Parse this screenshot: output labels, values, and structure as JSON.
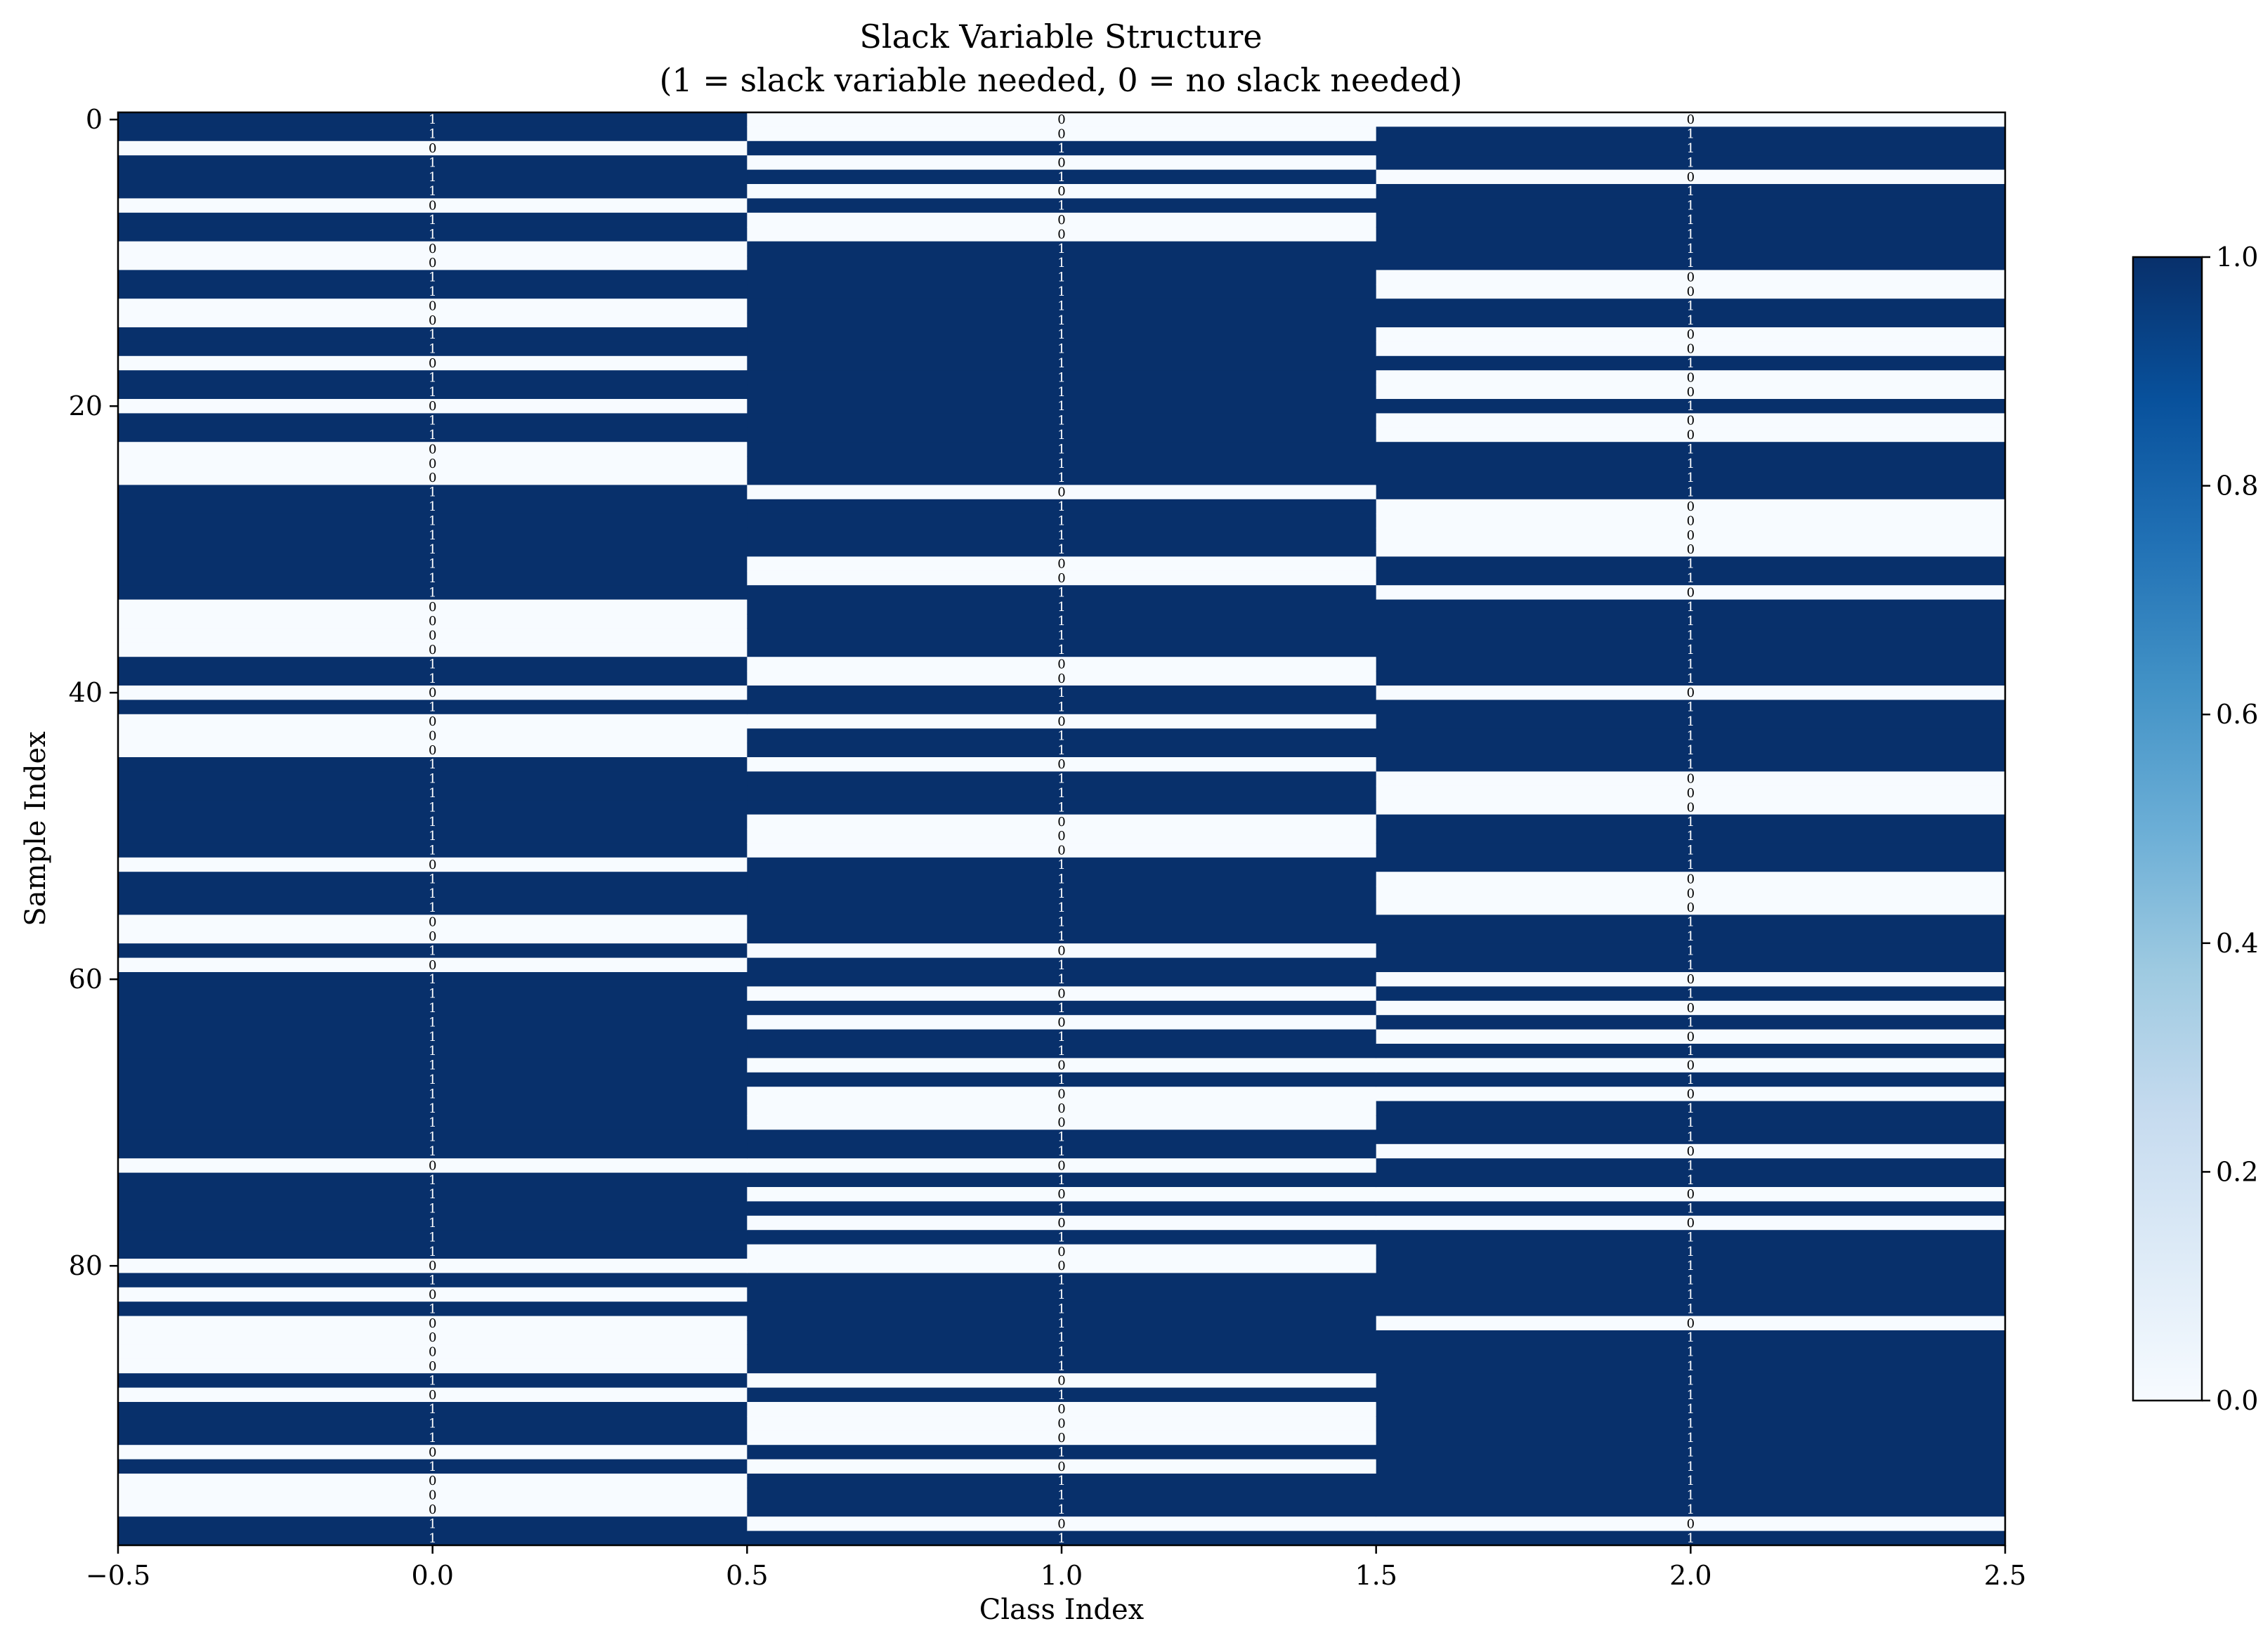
{
  "chart_data": {
    "type": "heatmap",
    "title": "Slack Variable Structure",
    "subtitle": "(1 = slack variable needed, 0 = no slack needed)",
    "xlabel": "Class Index",
    "ylabel": "Sample Index",
    "x_ticks": [
      "−0.5",
      "0.0",
      "0.5",
      "1.0",
      "1.5",
      "2.0",
      "2.5"
    ],
    "x_tick_values": [
      -0.5,
      0.0,
      0.5,
      1.0,
      1.5,
      2.0,
      2.5
    ],
    "y_ticks": [
      "0",
      "20",
      "40",
      "60",
      "80"
    ],
    "y_tick_values": [
      0,
      20,
      40,
      60,
      80
    ],
    "xlim": [
      -0.5,
      2.5
    ],
    "ylim": [
      99.5,
      -0.5
    ],
    "colormap": "Blues",
    "color_low": "#f7fbff",
    "color_high": "#08306b",
    "colorbar": {
      "ticks": [
        "0.0",
        "0.2",
        "0.4",
        "0.6",
        "0.8",
        "1.0"
      ],
      "tick_values": [
        0,
        0.2,
        0.4,
        0.6,
        0.8,
        1.0
      ],
      "range": [
        0,
        1
      ]
    },
    "columns": [
      0,
      1,
      2
    ],
    "rows": 100,
    "values": [
      [
        1,
        1,
        0,
        1,
        1,
        1,
        0,
        1,
        1,
        0,
        0,
        1,
        1,
        0,
        0,
        1,
        1,
        0,
        1,
        1,
        0,
        1,
        1,
        0,
        0,
        0,
        1,
        1,
        1,
        1,
        1,
        1,
        1,
        1,
        0,
        0,
        0,
        0,
        1,
        1,
        0,
        1,
        0,
        0,
        0,
        1,
        1,
        1,
        1,
        1,
        1,
        1,
        0,
        1,
        1,
        1,
        0,
        0,
        1,
        0,
        1,
        1,
        1,
        1,
        1,
        1,
        1,
        1,
        1,
        1,
        1,
        1,
        1,
        0,
        1,
        1,
        1,
        1,
        1,
        1,
        0,
        1,
        0,
        1,
        0,
        0,
        0,
        0,
        1,
        0,
        1,
        1,
        1,
        0,
        1,
        0,
        0,
        0,
        1,
        1
      ],
      [
        0,
        0,
        1,
        0,
        1,
        0,
        1,
        0,
        0,
        1,
        1,
        1,
        1,
        1,
        1,
        1,
        1,
        1,
        1,
        1,
        1,
        1,
        1,
        1,
        1,
        1,
        0,
        1,
        1,
        1,
        1,
        0,
        0,
        1,
        1,
        1,
        1,
        1,
        0,
        0,
        1,
        1,
        0,
        1,
        1,
        0,
        1,
        1,
        1,
        0,
        0,
        0,
        1,
        1,
        1,
        1,
        1,
        1,
        0,
        1,
        1,
        0,
        1,
        0,
        1,
        1,
        0,
        1,
        0,
        0,
        0,
        1,
        1,
        0,
        1,
        0,
        1,
        0,
        1,
        0,
        0,
        1,
        1,
        1,
        1,
        1,
        1,
        1,
        0,
        1,
        0,
        0,
        0,
        1,
        0,
        1,
        1,
        1,
        0,
        1
      ],
      [
        0,
        1,
        1,
        1,
        0,
        1,
        1,
        1,
        1,
        1,
        1,
        0,
        0,
        1,
        1,
        0,
        0,
        1,
        0,
        0,
        1,
        0,
        0,
        1,
        1,
        1,
        1,
        0,
        0,
        0,
        0,
        1,
        1,
        0,
        1,
        1,
        1,
        1,
        1,
        1,
        0,
        1,
        1,
        1,
        1,
        1,
        0,
        0,
        0,
        1,
        1,
        1,
        1,
        0,
        0,
        0,
        1,
        1,
        1,
        1,
        0,
        1,
        0,
        1,
        0,
        1,
        0,
        1,
        0,
        1,
        1,
        1,
        0,
        1,
        1,
        0,
        1,
        0,
        1,
        1,
        1,
        1,
        1,
        1,
        0,
        1,
        1,
        1,
        1,
        1,
        1,
        1,
        1,
        1,
        1,
        1,
        1,
        1,
        0,
        1
      ]
    ]
  }
}
